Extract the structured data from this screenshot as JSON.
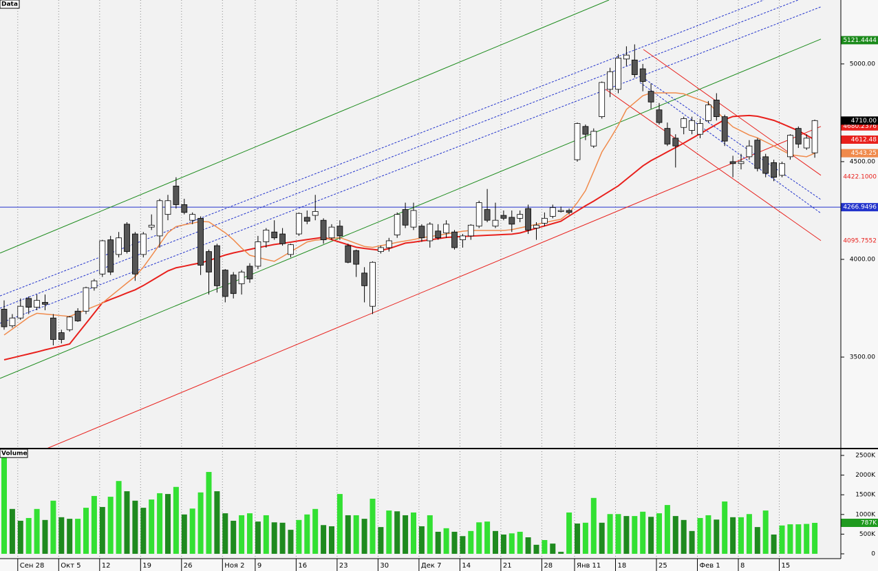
{
  "chart_data": [
    {
      "type": "candlestick",
      "title": "Data",
      "ylim": [
        3032,
        5327
      ],
      "yticks": [
        {
          "value": 3500,
          "label": "3500.00"
        },
        {
          "value": 4000,
          "label": "4000.00"
        },
        {
          "value": 4500,
          "label": "4500.00"
        },
        {
          "value": 5000,
          "label": "5000.00"
        }
      ],
      "up_color": "#ffffff",
      "down_color": "#555555",
      "open": [
        3745,
        3660,
        3700,
        3800,
        3755,
        3780,
        3700,
        3625,
        3640,
        3735,
        3735,
        3855,
        3925,
        4100,
        4025,
        4180,
        4130,
        4025,
        4165,
        4120,
        4230,
        4375,
        4280,
        4200,
        4210,
        4040,
        4070,
        3945,
        3920,
        3875,
        3965,
        3965,
        4090,
        4140,
        4130,
        4025,
        4130,
        4215,
        4225,
        4200,
        4110,
        4170,
        4070,
        4045,
        3930,
        3760,
        4040,
        4060,
        4125,
        4255,
        4165,
        4170,
        4095,
        4145,
        4135,
        4140,
        4100,
        4120,
        4170,
        4255,
        4170,
        4225,
        4215,
        4210,
        4260,
        4160,
        4185,
        4220,
        4245,
        4250,
        4510,
        4680,
        4580,
        4730,
        4870,
        4870,
        5025,
        5020,
        4975,
        4860,
        4765,
        4670,
        4620,
        4675,
        4660,
        4640,
        4710,
        4815,
        4730,
        4500,
        4490,
        4525,
        4610,
        4525,
        4495,
        4430,
        4525,
        4670,
        4570,
        4545
      ],
      "high": [
        3790,
        3720,
        3800,
        3810,
        3820,
        3820,
        3720,
        3640,
        3710,
        3750,
        3860,
        3900,
        4100,
        4120,
        4140,
        4190,
        4140,
        4140,
        4230,
        4310,
        4330,
        4420,
        4310,
        4240,
        4220,
        4050,
        4080,
        3950,
        3935,
        3945,
        3980,
        4120,
        4160,
        4200,
        4160,
        4080,
        4240,
        4250,
        4330,
        4210,
        4180,
        4200,
        4080,
        4050,
        3960,
        3990,
        4070,
        4110,
        4240,
        4290,
        4290,
        4180,
        4190,
        4180,
        4200,
        4150,
        4130,
        4180,
        4300,
        4360,
        4290,
        4250,
        4250,
        4250,
        4280,
        4190,
        4240,
        4280,
        4270,
        4260,
        4700,
        4690,
        4670,
        4910,
        4980,
        5050,
        5090,
        5100,
        5000,
        4900,
        4800,
        4700,
        4640,
        4730,
        4730,
        4720,
        4810,
        4850,
        4740,
        4530,
        4540,
        4610,
        4620,
        4540,
        4510,
        4500,
        4640,
        4680,
        4640,
        4715
      ],
      "low": [
        3640,
        3650,
        3690,
        3720,
        3740,
        3740,
        3560,
        3570,
        3630,
        3680,
        3720,
        3840,
        3910,
        3920,
        4010,
        4030,
        3890,
        4010,
        4150,
        4060,
        4200,
        4260,
        4230,
        4180,
        3920,
        3820,
        3830,
        3780,
        3800,
        3820,
        3880,
        3950,
        4060,
        4100,
        4070,
        4010,
        4120,
        4180,
        4200,
        4080,
        4100,
        4100,
        3980,
        3910,
        3780,
        3720,
        4030,
        4040,
        4110,
        4160,
        4150,
        4090,
        4060,
        4100,
        4110,
        4050,
        4060,
        4100,
        4160,
        4190,
        4160,
        4200,
        4140,
        4190,
        4130,
        4100,
        4170,
        4210,
        4240,
        4230,
        4500,
        4610,
        4570,
        4720,
        4830,
        4850,
        4990,
        4930,
        4860,
        4770,
        4690,
        4580,
        4470,
        4640,
        4640,
        4620,
        4700,
        4710,
        4580,
        4420,
        4460,
        4510,
        4450,
        4420,
        4400,
        4420,
        4510,
        4570,
        4560,
        4520
      ],
      "close": [
        3655,
        3700,
        3760,
        3755,
        3790,
        3770,
        3590,
        3590,
        3705,
        3685,
        3855,
        3890,
        4095,
        3935,
        4110,
        4040,
        3925,
        4130,
        4175,
        4300,
        4300,
        4280,
        4240,
        4230,
        3970,
        3935,
        3865,
        3810,
        3825,
        3935,
        3900,
        4090,
        4150,
        4110,
        4080,
        4075,
        4235,
        4195,
        4245,
        4100,
        4165,
        4120,
        3985,
        3975,
        3865,
        3985,
        4060,
        4095,
        4230,
        4175,
        4250,
        4110,
        4180,
        4110,
        4180,
        4060,
        4120,
        4175,
        4290,
        4200,
        4200,
        4210,
        4180,
        4230,
        4150,
        4175,
        4210,
        4265,
        4250,
        4240,
        4695,
        4640,
        4655,
        4905,
        4960,
        5030,
        5045,
        4945,
        4910,
        4805,
        4700,
        4590,
        4580,
        4720,
        4710,
        4695,
        4790,
        4730,
        4605,
        4490,
        4500,
        4580,
        4465,
        4440,
        4420,
        4490,
        4635,
        4590,
        4620,
        4710
      ],
      "series": [
        {
          "color": "#e8201c",
          "values": [
            3486,
            3496,
            3506,
            3516,
            3526,
            3537,
            3547,
            3557,
            3567,
            3620,
            3672,
            3725,
            3778,
            3795,
            3811,
            3828,
            3844,
            3866,
            3891,
            3916,
            3941,
            3957,
            3965,
            3974,
            3982,
            3994,
            4008,
            4022,
            4033,
            4042,
            4051,
            4060,
            4068,
            4076,
            4082,
            4088,
            4095,
            4101,
            4107,
            4113,
            4101,
            4088,
            4075,
            4062,
            4056,
            4051,
            4046,
            4055,
            4069,
            4083,
            4088,
            4094,
            4100,
            4106,
            4112,
            4115,
            4117,
            4119,
            4121,
            4123,
            4125,
            4127,
            4129,
            4135,
            4147,
            4159,
            4171,
            4183,
            4195,
            4222,
            4248,
            4274,
            4298,
            4324,
            4350,
            4376,
            4410,
            4444,
            4478,
            4505,
            4527,
            4550,
            4572,
            4595,
            4619,
            4643,
            4667,
            4691,
            4715,
            4731,
            4734,
            4736,
            4732,
            4722,
            4711,
            4694,
            4676,
            4658,
            4635,
            4612
          ]
        },
        {
          "color": "#f08a4b",
          "values": [
            3613,
            3643,
            3673,
            3704,
            3724,
            3720,
            3716,
            3712,
            3708,
            3725,
            3742,
            3759,
            3776,
            3811,
            3845,
            3879,
            3912,
            3960,
            4018,
            4077,
            4136,
            4168,
            4177,
            4185,
            4194,
            4192,
            4164,
            4136,
            4100,
            4058,
            4021,
            4010,
            3999,
            3990,
            4014,
            4039,
            4064,
            4089,
            4098,
            4102,
            4107,
            4111,
            4097,
            4081,
            4066,
            4061,
            4070,
            4078,
            4087,
            4094,
            4101,
            4111,
            4116,
            4123,
            4130,
            4137,
            4144,
            4148,
            4148,
            4148,
            4148,
            4148,
            4152,
            4161,
            4170,
            4179,
            4188,
            4197,
            4205,
            4238,
            4290,
            4352,
            4450,
            4549,
            4616,
            4686,
            4767,
            4802,
            4837,
            4852,
            4852,
            4852,
            4852,
            4847,
            4831,
            4816,
            4800,
            4758,
            4716,
            4678,
            4657,
            4636,
            4622,
            4601,
            4580,
            4558,
            4536,
            4530,
            4525,
            4543
          ]
        }
      ],
      "trendlines": [
        {
          "color": "#1a8a1a",
          "dash": false,
          "points": [
            [
              -0.5,
              4032
            ],
            [
              73.87,
              5327
            ]
          ]
        },
        {
          "color": "#1a8a1a",
          "dash": false,
          "points": [
            [
              -0.5,
              3391
            ],
            [
              99.75,
              5127
            ]
          ]
        },
        {
          "color": "#e8201c",
          "dash": false,
          "points": [
            [
              5.21,
              3032
            ],
            [
              99.75,
              4680
            ]
          ]
        },
        {
          "color": "#2233cc",
          "dash": true,
          "points": [
            [
              -0.5,
              3813
            ],
            [
              92.77,
              5327
            ]
          ]
        },
        {
          "color": "#2233cc",
          "dash": true,
          "points": [
            [
              -0.5,
              3750
            ],
            [
              96.97,
              5327
            ]
          ]
        },
        {
          "color": "#2233cc",
          "dash": true,
          "points": [
            [
              -0.5,
              3673
            ],
            [
              99.75,
              5292
            ]
          ]
        },
        {
          "color": "#e8201c",
          "dash": false,
          "points": [
            [
              78.07,
              5074
            ],
            [
              99.75,
              4430
            ]
          ]
        },
        {
          "color": "#e8201c",
          "dash": false,
          "points": [
            [
              73.45,
              4870
            ],
            [
              99.75,
              4096
            ]
          ]
        },
        {
          "color": "#2233cc",
          "dash": true,
          "points": [
            [
              77.65,
              4940
            ],
            [
              99.75,
              4306
            ]
          ]
        },
        {
          "color": "#2233cc",
          "dash": true,
          "points": [
            [
              77.65,
              4905
            ],
            [
              99.75,
              4236
            ]
          ]
        }
      ],
      "hline": {
        "value": 4266.9496,
        "color": "#2233cc"
      },
      "markers": [
        {
          "value": 5121.4444,
          "label": "5121.4444",
          "color": "#1a8a1a",
          "style": "box"
        },
        {
          "value": 4680.2376,
          "label": "4680.2376",
          "color": "#e8201c",
          "style": "box"
        },
        {
          "value": 4710,
          "label": "4710.00",
          "color": "#000000",
          "style": "box"
        },
        {
          "value": 4612.48,
          "label": "4612.48",
          "color": "#e8201c",
          "style": "box"
        },
        {
          "value": 4543.25,
          "label": "4543.25",
          "color": "#f08a4b",
          "style": "box"
        },
        {
          "value": 4422.1,
          "label": "4422.1000",
          "color": "#e8201c",
          "style": "text"
        },
        {
          "value": 4266.9496,
          "label": "4266.9496",
          "color": "#2233cc",
          "style": "box"
        },
        {
          "value": 4095.7552,
          "label": "4095.7552",
          "color": "#e8201c",
          "style": "text"
        }
      ]
    },
    {
      "type": "bar",
      "title": "Volume",
      "ylim": [
        -122000,
        2675000
      ],
      "yticks": [
        0,
        {
          "value": 500000,
          "label": "500K"
        },
        {
          "value": 1000000,
          "label": "1000K"
        },
        {
          "value": 1500000,
          "label": "1500K"
        },
        {
          "value": 2000000,
          "label": "2000K"
        },
        {
          "value": 2500000,
          "label": "2500K"
        }
      ],
      "up_color": "#33e033",
      "down_color": "#1f8a1f",
      "categories": [
        null,
        null,
        "Сен 28",
        null,
        null,
        null,
        null,
        "Окт 5",
        null,
        null,
        null,
        null,
        "12",
        null,
        null,
        null,
        null,
        "19",
        null,
        null,
        null,
        null,
        "26",
        null,
        null,
        null,
        null,
        "Ноя 2",
        null,
        null,
        null,
        "9",
        null,
        null,
        null,
        null,
        "16",
        null,
        null,
        null,
        null,
        "23",
        null,
        null,
        null,
        null,
        "30",
        null,
        null,
        null,
        null,
        "Дек 7",
        null,
        null,
        null,
        null,
        "14",
        null,
        null,
        null,
        null,
        "21",
        null,
        null,
        null,
        null,
        "28",
        null,
        null,
        null,
        "Янв 11",
        null,
        null,
        null,
        null,
        "18",
        null,
        null,
        null,
        null,
        "25",
        null,
        null,
        null,
        null,
        "Фев 1",
        null,
        null,
        null,
        null,
        "8",
        null,
        null,
        null,
        null,
        "15",
        null,
        null,
        null,
        null
      ],
      "values": [
        2450000,
        1140000,
        840000,
        910000,
        1140000,
        860000,
        1350000,
        930000,
        890000,
        890000,
        1170000,
        1470000,
        1190000,
        1450000,
        1850000,
        1590000,
        1350000,
        1170000,
        1380000,
        1540000,
        1520000,
        1700000,
        1000000,
        1150000,
        1560000,
        2080000,
        1590000,
        1030000,
        840000,
        980000,
        1030000,
        820000,
        980000,
        800000,
        790000,
        610000,
        860000,
        1000000,
        1140000,
        730000,
        700000,
        1520000,
        980000,
        980000,
        890000,
        1400000,
        680000,
        1100000,
        1080000,
        980000,
        1050000,
        700000,
        980000,
        560000,
        650000,
        560000,
        450000,
        580000,
        800000,
        820000,
        580000,
        490000,
        520000,
        560000,
        420000,
        230000,
        350000,
        260000,
        50000,
        1050000,
        770000,
        790000,
        1420000,
        790000,
        1010000,
        1010000,
        960000,
        960000,
        1070000,
        940000,
        1030000,
        1240000,
        960000,
        860000,
        580000,
        910000,
        980000,
        870000,
        1330000,
        930000,
        930000,
        1010000,
        680000,
        1100000,
        490000,
        720000,
        750000,
        750000,
        760000,
        787000
      ],
      "markers": [
        {
          "value": 787000,
          "label": "787K",
          "color": "#1f9a1f",
          "style": "box"
        }
      ]
    }
  ]
}
